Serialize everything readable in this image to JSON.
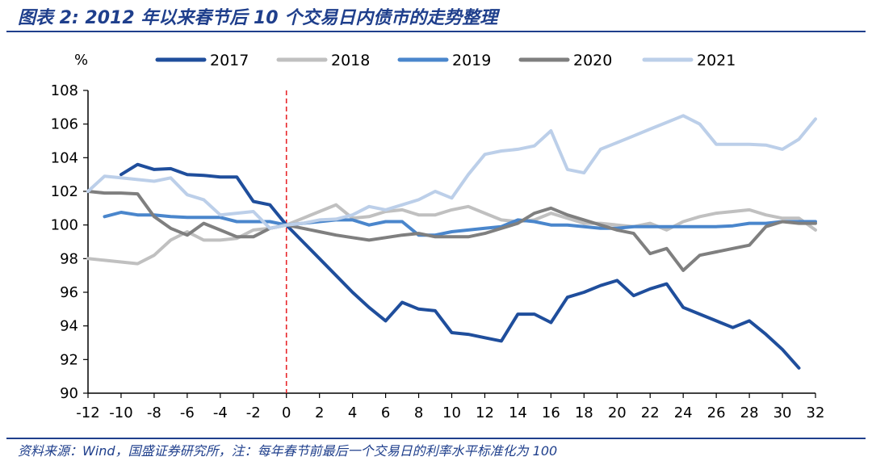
{
  "header": {
    "title": "图表 2:  2012 年以来春节后 10 个交易日内债市的走势整理"
  },
  "footer": {
    "source": "资料来源：Wind，国盛证券研究所，注：每年春节前最后一个交易日的利率水平标准化为 100"
  },
  "chart_data": {
    "type": "line",
    "title": "2012 年以来春节后 10 个交易日内债市的走势整理",
    "ylabel": "%",
    "xlim": [
      -12,
      32
    ],
    "ylim": [
      90,
      108
    ],
    "xticks": [
      -12,
      -10,
      -8,
      -6,
      -4,
      -2,
      0,
      2,
      4,
      6,
      8,
      10,
      12,
      14,
      16,
      18,
      20,
      22,
      24,
      26,
      28,
      30,
      32
    ],
    "yticks": [
      90,
      92,
      94,
      96,
      98,
      100,
      102,
      104,
      106,
      108
    ],
    "legend_position": "top",
    "reference_line": {
      "x": 0,
      "color": "#e8262a",
      "style": "dashed"
    },
    "series": [
      {
        "name": "2017",
        "color": "#1f4e9c",
        "x": [
          -10,
          -9,
          -8,
          -7,
          -6,
          -5,
          -4,
          -3,
          -2,
          -1,
          0,
          1,
          2,
          3,
          4,
          5,
          6,
          7,
          8,
          9,
          10,
          11,
          12,
          13,
          14,
          15,
          16,
          17,
          18,
          19,
          20,
          21,
          22,
          23,
          24,
          25,
          26,
          27,
          28,
          29,
          30,
          31
        ],
        "y": [
          103.0,
          103.6,
          103.3,
          103.35,
          103.0,
          102.95,
          102.85,
          102.85,
          101.4,
          101.2,
          100.0,
          99.0,
          98.0,
          97.0,
          96.0,
          95.1,
          94.3,
          95.4,
          95.0,
          94.9,
          93.6,
          93.5,
          93.3,
          93.1,
          94.7,
          94.7,
          94.2,
          95.7,
          96.0,
          96.4,
          96.7,
          95.8,
          96.2,
          96.5,
          95.1,
          94.7,
          94.3,
          93.9,
          94.3,
          93.5,
          92.6,
          91.5
        ]
      },
      {
        "name": "2018",
        "color": "#c0c0c0",
        "x": [
          -12,
          -11,
          -10,
          -9,
          -8,
          -7,
          -6,
          -5,
          -4,
          -3,
          -2,
          -1,
          0,
          1,
          2,
          3,
          4,
          5,
          6,
          7,
          8,
          9,
          10,
          11,
          12,
          13,
          14,
          15,
          16,
          17,
          18,
          19,
          20,
          21,
          22,
          23,
          24,
          25,
          26,
          27,
          28,
          29,
          30,
          31,
          32
        ],
        "y": [
          98.0,
          97.9,
          97.8,
          97.7,
          98.2,
          99.1,
          99.6,
          99.1,
          99.1,
          99.2,
          99.7,
          99.8,
          100.0,
          100.4,
          100.8,
          101.2,
          100.4,
          100.5,
          100.8,
          100.9,
          100.6,
          100.6,
          100.9,
          101.1,
          100.7,
          100.3,
          100.2,
          100.3,
          100.7,
          100.4,
          100.1,
          100.1,
          100.0,
          99.9,
          100.1,
          99.7,
          100.2,
          100.5,
          100.7,
          100.8,
          100.9,
          100.6,
          100.4,
          100.4,
          99.7
        ]
      },
      {
        "name": "2019",
        "color": "#4a86cc",
        "x": [
          -11,
          -10,
          -9,
          -8,
          -7,
          -6,
          -5,
          -4,
          -3,
          -2,
          -1,
          0,
          1,
          2,
          3,
          4,
          5,
          6,
          7,
          8,
          9,
          10,
          11,
          12,
          13,
          14,
          15,
          16,
          17,
          18,
          19,
          20,
          21,
          22,
          23,
          24,
          25,
          26,
          27,
          28,
          29,
          30,
          31,
          32
        ],
        "y": [
          100.5,
          100.75,
          100.6,
          100.6,
          100.5,
          100.45,
          100.45,
          100.45,
          100.2,
          100.2,
          100.2,
          100.0,
          100.1,
          100.2,
          100.3,
          100.3,
          100.0,
          100.2,
          100.2,
          99.4,
          99.4,
          99.6,
          99.7,
          99.8,
          99.9,
          100.3,
          100.2,
          100.0,
          100.0,
          99.9,
          99.8,
          99.8,
          99.9,
          99.9,
          99.9,
          99.9,
          99.9,
          99.9,
          99.95,
          100.1,
          100.1,
          100.2,
          100.2,
          100.2
        ]
      },
      {
        "name": "2020",
        "color": "#7f7f7f",
        "x": [
          -12,
          -11,
          -10,
          -9,
          -8,
          -7,
          -6,
          -5,
          -4,
          -3,
          -2,
          -1,
          0,
          1,
          2,
          3,
          4,
          5,
          6,
          7,
          8,
          9,
          10,
          11,
          12,
          13,
          14,
          15,
          16,
          17,
          18,
          19,
          20,
          21,
          22,
          23,
          24,
          25,
          26,
          27,
          28,
          29,
          30,
          31,
          32
        ],
        "y": [
          102.0,
          101.9,
          101.9,
          101.85,
          100.5,
          99.8,
          99.4,
          100.1,
          99.7,
          99.3,
          99.3,
          99.8,
          100.0,
          99.8,
          99.6,
          99.4,
          99.25,
          99.1,
          99.25,
          99.4,
          99.5,
          99.3,
          99.3,
          99.3,
          99.5,
          99.8,
          100.1,
          100.7,
          101.0,
          100.6,
          100.3,
          100.0,
          99.7,
          99.5,
          98.3,
          98.6,
          97.3,
          98.2,
          98.4,
          98.6,
          98.8,
          99.9,
          100.2,
          100.1,
          100.1
        ]
      },
      {
        "name": "2021",
        "color": "#bccfe9",
        "x": [
          -12,
          -11,
          -10,
          -9,
          -8,
          -7,
          -6,
          -5,
          -4,
          -3,
          -2,
          -1,
          0,
          1,
          2,
          3,
          4,
          5,
          6,
          7,
          8,
          9,
          10,
          11,
          12,
          13,
          14,
          15,
          16,
          17,
          18,
          19,
          20,
          21,
          22,
          23,
          24,
          25,
          26,
          27,
          28,
          29,
          30,
          31,
          32
        ],
        "y": [
          102.0,
          102.9,
          102.8,
          102.7,
          102.6,
          102.8,
          101.8,
          101.5,
          100.6,
          100.7,
          100.8,
          99.8,
          100.0,
          100.1,
          100.3,
          100.35,
          100.6,
          101.1,
          100.9,
          101.2,
          101.5,
          102.0,
          101.6,
          103.0,
          104.2,
          104.4,
          104.5,
          104.7,
          105.6,
          103.3,
          103.1,
          104.5,
          104.9,
          105.3,
          105.7,
          106.1,
          106.5,
          106.0,
          104.8,
          104.8,
          104.8,
          104.75,
          104.5,
          105.1,
          106.3
        ]
      }
    ]
  }
}
